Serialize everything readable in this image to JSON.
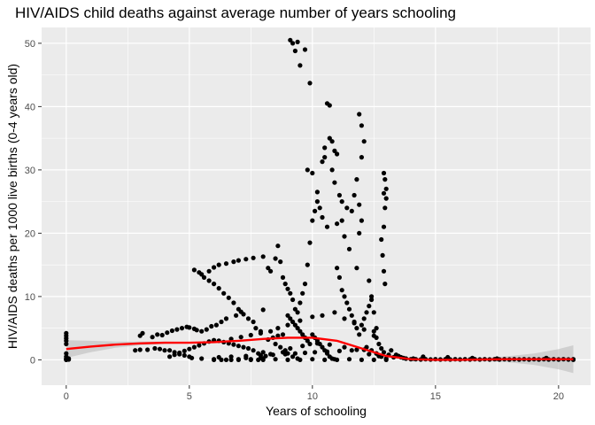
{
  "chart_data": {
    "type": "scatter",
    "title": "HIV/AIDS child deaths against average number of years schooling",
    "xlabel": "Years of schooling",
    "ylabel": "HIV/AIDS deaths per 1000 live births (0-4 years old)",
    "xlim": [
      -1,
      21.3
    ],
    "ylim": [
      -4,
      52.5
    ],
    "xticks": [
      0,
      5,
      10,
      15,
      20
    ],
    "yticks": [
      0,
      10,
      20,
      30,
      40,
      50
    ],
    "grid": true,
    "legend": "none",
    "colors": {
      "panel": "#ebebeb",
      "grid": "#ffffff",
      "points": "#000000",
      "smooth_line": "#ff0000",
      "confidence_band": "#bdbdbd"
    },
    "smooth_x": [
      0,
      1,
      2,
      3,
      4,
      5,
      6,
      7,
      8,
      9,
      10,
      11,
      12,
      13,
      14,
      15,
      16,
      17,
      18,
      19,
      20,
      20.6
    ],
    "smooth_y": [
      1.7,
      2.1,
      2.4,
      2.6,
      2.7,
      2.7,
      2.8,
      3.0,
      3.3,
      3.5,
      3.5,
      3.0,
      1.8,
      0.6,
      0.1,
      0.0,
      0.0,
      0.05,
      0.1,
      0.1,
      0.1,
      0.1
    ],
    "band_lower": [
      0.3,
      1.2,
      1.9,
      2.3,
      2.5,
      2.6,
      2.7,
      2.9,
      3.2,
      3.4,
      3.4,
      2.9,
      1.7,
      0.5,
      0.0,
      -0.1,
      -0.1,
      -0.2,
      -0.4,
      -0.8,
      -1.5,
      -2.1
    ],
    "band_upper": [
      3.1,
      3.0,
      2.9,
      2.9,
      2.9,
      2.8,
      2.9,
      3.1,
      3.4,
      3.6,
      3.6,
      3.1,
      1.9,
      0.7,
      0.2,
      0.1,
      0.1,
      0.3,
      0.6,
      1.0,
      1.7,
      2.3
    ],
    "points": [
      [
        0,
        0
      ],
      [
        0,
        0.1
      ],
      [
        0,
        0.2
      ],
      [
        0,
        0.5
      ],
      [
        0,
        1.0
      ],
      [
        0,
        2.5
      ],
      [
        0,
        3.0
      ],
      [
        0,
        3.4
      ],
      [
        0,
        3.8
      ],
      [
        0,
        4.2
      ],
      [
        0.1,
        0.05
      ],
      [
        0.1,
        0.2
      ],
      [
        2.8,
        1.5
      ],
      [
        3.0,
        1.6
      ],
      [
        3.0,
        3.8
      ],
      [
        3.1,
        4.2
      ],
      [
        3.3,
        1.6
      ],
      [
        3.5,
        3.6
      ],
      [
        3.6,
        1.8
      ],
      [
        3.7,
        4.0
      ],
      [
        3.8,
        1.7
      ],
      [
        3.9,
        3.9
      ],
      [
        4.0,
        1.5
      ],
      [
        4.1,
        4.3
      ],
      [
        4.2,
        1.5
      ],
      [
        4.3,
        4.6
      ],
      [
        4.4,
        1.2
      ],
      [
        4.5,
        4.8
      ],
      [
        4.6,
        0.9
      ],
      [
        4.7,
        5.0
      ],
      [
        4.8,
        0.7
      ],
      [
        4.9,
        5.2
      ],
      [
        5.0,
        0.5
      ],
      [
        5.0,
        5.1
      ],
      [
        5.1,
        0.3
      ],
      [
        5.2,
        4.9
      ],
      [
        5.2,
        14.2
      ],
      [
        5.3,
        4.7
      ],
      [
        5.4,
        13.8
      ],
      [
        5.5,
        0.2
      ],
      [
        5.5,
        4.5
      ],
      [
        5.6,
        13.0
      ],
      [
        5.7,
        4.8
      ],
      [
        5.8,
        12.5
      ],
      [
        5.9,
        5.3
      ],
      [
        6.0,
        12.0
      ],
      [
        6.0,
        0.1
      ],
      [
        6.1,
        5.5
      ],
      [
        6.2,
        11.3
      ],
      [
        6.3,
        0.0
      ],
      [
        6.3,
        6.0
      ],
      [
        6.4,
        10.5
      ],
      [
        6.5,
        6.5
      ],
      [
        6.6,
        9.8
      ],
      [
        6.7,
        0.0
      ],
      [
        6.8,
        9.0
      ],
      [
        6.9,
        7.0
      ],
      [
        7.0,
        8.0
      ],
      [
        7.0,
        0.0
      ],
      [
        7.1,
        7.6
      ],
      [
        7.2,
        7.2
      ],
      [
        7.3,
        0.3
      ],
      [
        7.4,
        6.5
      ],
      [
        7.5,
        0.1
      ],
      [
        7.6,
        6.0
      ],
      [
        7.7,
        5.0
      ],
      [
        7.8,
        0.0
      ],
      [
        7.9,
        4.5
      ],
      [
        8.0,
        0.2
      ],
      [
        8.0,
        7.9
      ],
      [
        5.5,
        13.5
      ],
      [
        5.8,
        14.0
      ],
      [
        6.0,
        14.6
      ],
      [
        6.2,
        15.0
      ],
      [
        6.5,
        15.2
      ],
      [
        6.8,
        15.5
      ],
      [
        7.0,
        15.7
      ],
      [
        7.3,
        15.9
      ],
      [
        7.6,
        16.1
      ],
      [
        8.0,
        16.3
      ],
      [
        8.2,
        14.5
      ],
      [
        8.3,
        14.0
      ],
      [
        8.5,
        16.0
      ],
      [
        8.6,
        18.0
      ],
      [
        8.7,
        15.5
      ],
      [
        8.8,
        13.0
      ],
      [
        8.9,
        12.0
      ],
      [
        9.0,
        11.2
      ],
      [
        9.1,
        10.5
      ],
      [
        9.2,
        9.5
      ],
      [
        9.3,
        8.0
      ],
      [
        9.4,
        7.5
      ],
      [
        9.5,
        9.0
      ],
      [
        9.6,
        10.5
      ],
      [
        9.7,
        12.0
      ],
      [
        9.8,
        15.0
      ],
      [
        9.9,
        18.5
      ],
      [
        10.0,
        22.0
      ],
      [
        10.1,
        23.5
      ],
      [
        10.2,
        25.0
      ],
      [
        9.1,
        50.5
      ],
      [
        9.2,
        50.0
      ],
      [
        9.3,
        48.8
      ],
      [
        9.4,
        50.2
      ],
      [
        9.5,
        46.5
      ],
      [
        9.7,
        49.0
      ],
      [
        9.9,
        43.7
      ],
      [
        10.4,
        31.3
      ],
      [
        10.5,
        32.0
      ],
      [
        10.5,
        33.5
      ],
      [
        10.6,
        40.5
      ],
      [
        10.7,
        40.2
      ],
      [
        10.7,
        35.0
      ],
      [
        10.8,
        34.5
      ],
      [
        10.8,
        30.0
      ],
      [
        10.9,
        33.0
      ],
      [
        11.0,
        32.5
      ],
      [
        10.9,
        28.0
      ],
      [
        11.0,
        21.5
      ],
      [
        11.1,
        26.0
      ],
      [
        11.2,
        25.0
      ],
      [
        11.3,
        19.5
      ],
      [
        11.5,
        17.5
      ],
      [
        11.8,
        14.5
      ],
      [
        11.9,
        38.8
      ],
      [
        12.0,
        37.0
      ],
      [
        12.0,
        32.0
      ],
      [
        12.1,
        34.5
      ],
      [
        11.8,
        28.5
      ],
      [
        11.9,
        24.5
      ],
      [
        12.0,
        22.0
      ],
      [
        11.9,
        20.0
      ],
      [
        12.3,
        12.5
      ],
      [
        12.4,
        10.0
      ],
      [
        12.5,
        7.5
      ],
      [
        12.6,
        5.0
      ],
      [
        12.9,
        29.5
      ],
      [
        12.95,
        28.5
      ],
      [
        13.0,
        27.0
      ],
      [
        12.9,
        26.3
      ],
      [
        13.0,
        25.5
      ],
      [
        12.95,
        24.0
      ],
      [
        12.9,
        21.0
      ],
      [
        12.8,
        19.0
      ],
      [
        12.85,
        16.5
      ],
      [
        12.9,
        14.0
      ],
      [
        12.95,
        12.0
      ],
      [
        9.8,
        30.0
      ],
      [
        10.0,
        29.5
      ],
      [
        10.2,
        26.5
      ],
      [
        10.3,
        24.0
      ],
      [
        10.4,
        22.5
      ],
      [
        10.6,
        21.0
      ],
      [
        11.2,
        22.0
      ],
      [
        11.4,
        24.0
      ],
      [
        11.6,
        23.5
      ],
      [
        11.7,
        26.0
      ],
      [
        11.0,
        14.5
      ],
      [
        11.1,
        13.0
      ],
      [
        11.2,
        11.0
      ],
      [
        11.3,
        10.0
      ],
      [
        11.4,
        9.0
      ],
      [
        11.5,
        8.0
      ],
      [
        11.6,
        7.0
      ],
      [
        11.7,
        6.0
      ],
      [
        11.8,
        5.0
      ],
      [
        11.9,
        4.0
      ],
      [
        9.0,
        7.0
      ],
      [
        9.1,
        6.5
      ],
      [
        9.2,
        6.0
      ],
      [
        9.3,
        5.5
      ],
      [
        9.4,
        5.0
      ],
      [
        9.5,
        4.5
      ],
      [
        9.6,
        4.0
      ],
      [
        9.7,
        3.5
      ],
      [
        9.8,
        3.0
      ],
      [
        9.9,
        2.5
      ],
      [
        10.0,
        4.0
      ],
      [
        10.1,
        3.5
      ],
      [
        10.2,
        3.0
      ],
      [
        10.3,
        2.5
      ],
      [
        10.4,
        2.0
      ],
      [
        10.5,
        1.5
      ],
      [
        10.6,
        1.0
      ],
      [
        10.7,
        0.5
      ],
      [
        10.8,
        0.2
      ],
      [
        10.9,
        0.1
      ],
      [
        8.2,
        3.2
      ],
      [
        8.4,
        3.5
      ],
      [
        8.6,
        3.8
      ],
      [
        8.8,
        4.0
      ],
      [
        8.5,
        2.5
      ],
      [
        8.7,
        2.0
      ],
      [
        8.9,
        1.5
      ],
      [
        9.0,
        1.0
      ],
      [
        9.2,
        0.5
      ],
      [
        9.4,
        0.2
      ],
      [
        8.0,
        1.2
      ],
      [
        7.8,
        1.0
      ],
      [
        7.6,
        1.5
      ],
      [
        7.4,
        1.8
      ],
      [
        7.2,
        2.0
      ],
      [
        7.0,
        2.2
      ],
      [
        6.8,
        2.4
      ],
      [
        6.6,
        2.6
      ],
      [
        6.4,
        2.8
      ],
      [
        6.2,
        3.0
      ],
      [
        6.0,
        3.1
      ],
      [
        5.8,
        2.9
      ],
      [
        5.6,
        2.6
      ],
      [
        5.4,
        2.3
      ],
      [
        5.2,
        2.0
      ],
      [
        5.0,
        1.7
      ],
      [
        4.8,
        1.4
      ],
      [
        4.6,
        1.1
      ],
      [
        4.4,
        0.8
      ],
      [
        4.2,
        0.5
      ],
      [
        12.2,
        2.0
      ],
      [
        12.4,
        1.5
      ],
      [
        12.6,
        1.0
      ],
      [
        12.8,
        0.5
      ],
      [
        13.0,
        0.2
      ],
      [
        13.2,
        1.5
      ],
      [
        13.4,
        0.8
      ],
      [
        13.6,
        0.4
      ],
      [
        13.8,
        0.2
      ],
      [
        14.0,
        0.1
      ],
      [
        12.0,
        5.5
      ],
      [
        12.1,
        6.5
      ],
      [
        12.2,
        7.5
      ],
      [
        12.3,
        8.5
      ],
      [
        12.4,
        9.5
      ],
      [
        12.5,
        4.5
      ],
      [
        12.6,
        3.5
      ],
      [
        12.7,
        2.5
      ],
      [
        12.8,
        1.8
      ],
      [
        12.9,
        1.2
      ],
      [
        14.2,
        0.1
      ],
      [
        14.4,
        0.05
      ],
      [
        14.6,
        0.1
      ],
      [
        14.8,
        0.05
      ],
      [
        15.0,
        0.1
      ],
      [
        15.2,
        0.05
      ],
      [
        15.4,
        0.1
      ],
      [
        15.6,
        0.05
      ],
      [
        15.8,
        0.1
      ],
      [
        16.0,
        0.05
      ],
      [
        16.2,
        0.1
      ],
      [
        16.4,
        0.05
      ],
      [
        16.6,
        0.1
      ],
      [
        16.8,
        0.05
      ],
      [
        17.0,
        0.1
      ],
      [
        17.2,
        0.05
      ],
      [
        17.4,
        0.1
      ],
      [
        17.6,
        0.05
      ],
      [
        17.8,
        0.1
      ],
      [
        18.0,
        0.05
      ],
      [
        18.2,
        0.1
      ],
      [
        18.4,
        0.05
      ],
      [
        18.6,
        0.1
      ],
      [
        18.8,
        0.05
      ],
      [
        19.0,
        0.1
      ],
      [
        19.2,
        0.05
      ],
      [
        19.4,
        0.1
      ],
      [
        19.6,
        0.05
      ],
      [
        19.8,
        0.1
      ],
      [
        20.0,
        0.05
      ],
      [
        20.2,
        0.1
      ],
      [
        20.4,
        0.05
      ],
      [
        20.6,
        0.1
      ],
      [
        20.6,
        0.02
      ],
      [
        19.5,
        0.3
      ],
      [
        17.5,
        0.2
      ],
      [
        16.5,
        0.3
      ],
      [
        15.5,
        0.4
      ],
      [
        14.5,
        0.5
      ],
      [
        13.5,
        0.6
      ],
      [
        6.0,
        0.0
      ],
      [
        6.5,
        0.0
      ],
      [
        7.0,
        0.1
      ],
      [
        7.5,
        0.0
      ],
      [
        8.0,
        0.0
      ],
      [
        8.5,
        0.1
      ],
      [
        9.0,
        0.0
      ],
      [
        9.5,
        0.0
      ],
      [
        10.0,
        0.1
      ],
      [
        10.5,
        0.0
      ],
      [
        11.0,
        0.0
      ],
      [
        11.5,
        0.1
      ],
      [
        12.0,
        0.0
      ],
      [
        12.5,
        0.0
      ],
      [
        13.0,
        0.0
      ],
      [
        6.2,
        0.4
      ],
      [
        6.7,
        0.5
      ],
      [
        7.3,
        0.6
      ],
      [
        7.9,
        0.7
      ],
      [
        8.4,
        0.8
      ],
      [
        8.9,
        0.9
      ],
      [
        9.3,
        1.0
      ],
      [
        9.7,
        1.1
      ],
      [
        10.1,
        1.2
      ],
      [
        10.6,
        1.3
      ],
      [
        11.1,
        1.4
      ],
      [
        11.6,
        1.5
      ],
      [
        12.1,
        1.6
      ],
      [
        12.6,
        1.0
      ],
      [
        13.1,
        0.8
      ],
      [
        7.9,
        0.3
      ],
      [
        8.1,
        0.6
      ],
      [
        8.3,
        0.9
      ],
      [
        8.8,
        1.2
      ],
      [
        9.1,
        1.8
      ],
      [
        9.6,
        2.2
      ],
      [
        10.2,
        2.6
      ],
      [
        10.7,
        2.4
      ],
      [
        11.3,
        2.0
      ],
      [
        11.8,
        1.6
      ],
      [
        12.3,
        0.9
      ],
      [
        12.7,
        0.6
      ],
      [
        13.3,
        0.4
      ],
      [
        13.7,
        0.3
      ],
      [
        14.1,
        0.2
      ],
      [
        8.6,
        5.0
      ],
      [
        9.0,
        5.5
      ],
      [
        9.5,
        6.2
      ],
      [
        10.0,
        6.8
      ],
      [
        10.4,
        7.0
      ],
      [
        10.9,
        7.5
      ],
      [
        11.3,
        6.5
      ],
      [
        11.7,
        5.8
      ],
      [
        12.1,
        4.8
      ],
      [
        12.5,
        3.8
      ],
      [
        8.3,
        4.5
      ],
      [
        7.9,
        4.2
      ],
      [
        7.5,
        3.9
      ],
      [
        7.1,
        3.6
      ],
      [
        6.7,
        3.3
      ]
    ]
  }
}
